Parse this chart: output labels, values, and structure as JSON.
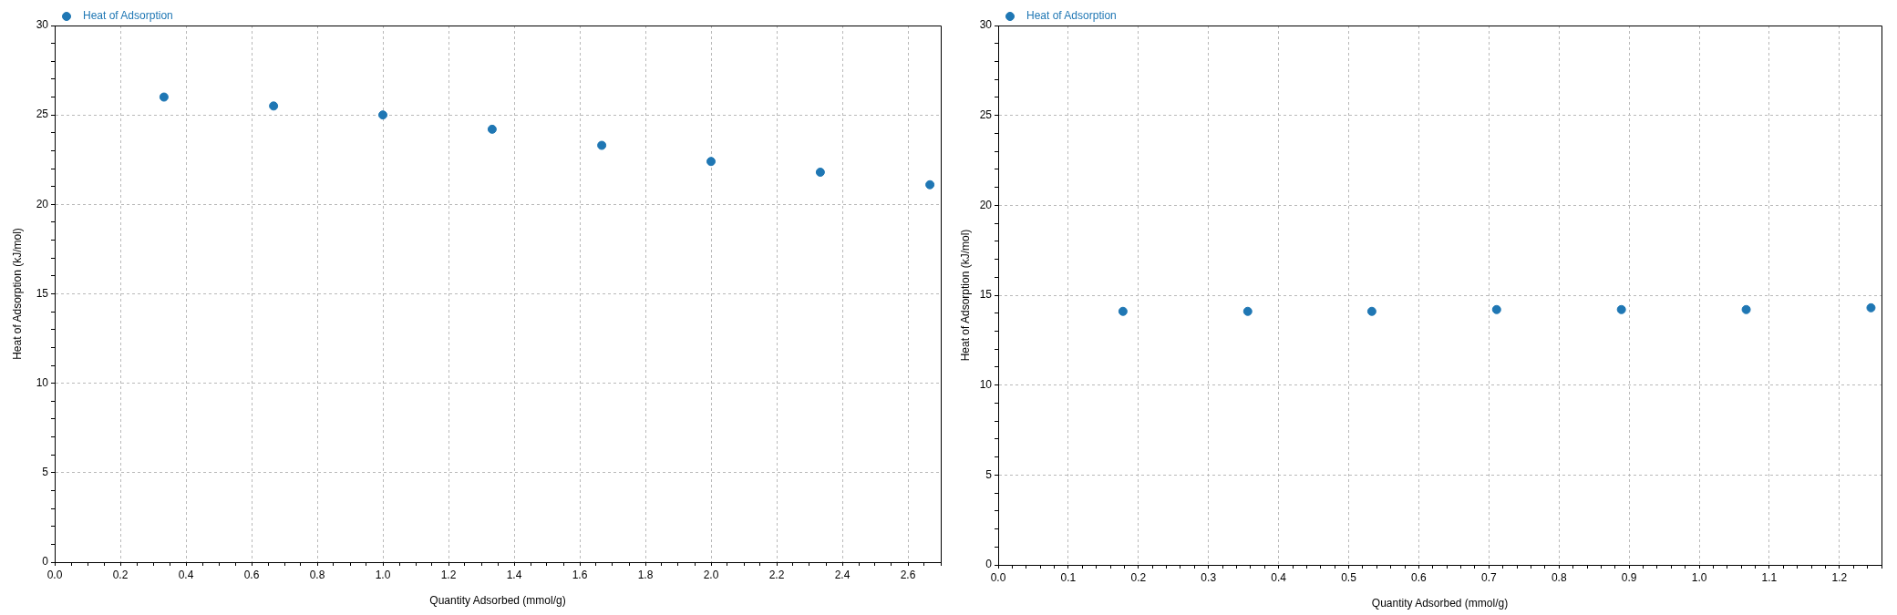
{
  "chart_data": [
    {
      "type": "scatter",
      "xlabel": "Quantity Adsorbed (mmol/g)",
      "ylabel": "Heat of Adsorption (kJ/mol)",
      "x": [
        0.333,
        0.667,
        1.0,
        1.333,
        1.667,
        2.0,
        2.333,
        2.667
      ],
      "series": [
        {
          "name": "Heat of Adsorption",
          "color": "#1f77b4",
          "values": [
            26.0,
            25.5,
            25.0,
            24.2,
            23.3,
            22.4,
            21.8,
            21.1
          ]
        }
      ],
      "xlim": [
        0,
        2.7
      ],
      "ylim": [
        0,
        30
      ],
      "xticks": [
        {
          "value": 0,
          "label": "0.0"
        },
        {
          "value": 0.05,
          "label": null
        },
        {
          "value": 0.1,
          "label": null
        },
        {
          "value": 0.15,
          "label": null
        },
        0.2,
        {
          "value": 0.25,
          "label": null
        },
        {
          "value": 0.3,
          "label": null
        },
        {
          "value": 0.35,
          "label": null
        },
        0.4,
        {
          "value": 0.45,
          "label": null
        },
        {
          "value": 0.5,
          "label": null
        },
        {
          "value": 0.55,
          "label": null
        },
        0.6,
        {
          "value": 0.65,
          "label": null
        },
        {
          "value": 0.7,
          "label": null
        },
        {
          "value": 0.75,
          "label": null
        },
        0.8,
        {
          "value": 0.85,
          "label": null
        },
        {
          "value": 0.9,
          "label": null
        },
        {
          "value": 0.95,
          "label": null
        },
        {
          "value": 1,
          "label": "1.0"
        },
        {
          "value": 1.05,
          "label": null
        },
        {
          "value": 1.1,
          "label": null
        },
        {
          "value": 1.15,
          "label": null
        },
        1.2,
        {
          "value": 1.25,
          "label": null
        },
        {
          "value": 1.3,
          "label": null
        },
        {
          "value": 1.35,
          "label": null
        },
        1.4,
        {
          "value": 1.45,
          "label": null
        },
        {
          "value": 1.5,
          "label": null
        },
        {
          "value": 1.55,
          "label": null
        },
        1.6,
        {
          "value": 1.65,
          "label": null
        },
        {
          "value": 1.7,
          "label": null
        },
        {
          "value": 1.75,
          "label": null
        },
        1.8,
        {
          "value": 1.85,
          "label": null
        },
        {
          "value": 1.9,
          "label": null
        },
        {
          "value": 1.95,
          "label": null
        },
        {
          "value": 2,
          "label": "2.0"
        },
        {
          "value": 2.05,
          "label": null
        },
        {
          "value": 2.1,
          "label": null
        },
        {
          "value": 2.15,
          "label": null
        },
        2.2,
        {
          "value": 2.25,
          "label": null
        },
        {
          "value": 2.3,
          "label": null
        },
        {
          "value": 2.35,
          "label": null
        },
        2.4,
        {
          "value": 2.45,
          "label": null
        },
        {
          "value": 2.5,
          "label": null
        },
        {
          "value": 2.55,
          "label": null
        },
        2.6,
        {
          "value": 2.65,
          "label": null
        },
        {
          "value": 2.7,
          "label": null
        }
      ],
      "yticks": [
        0,
        {
          "value": 1,
          "label": null
        },
        {
          "value": 2,
          "label": null
        },
        {
          "value": 3,
          "label": null
        },
        {
          "value": 4,
          "label": null
        },
        5,
        {
          "value": 6,
          "label": null
        },
        {
          "value": 7,
          "label": null
        },
        {
          "value": 8,
          "label": null
        },
        {
          "value": 9,
          "label": null
        },
        10,
        {
          "value": 11,
          "label": null
        },
        {
          "value": 12,
          "label": null
        },
        {
          "value": 13,
          "label": null
        },
        {
          "value": 14,
          "label": null
        },
        15,
        {
          "value": 16,
          "label": null
        },
        {
          "value": 17,
          "label": null
        },
        {
          "value": 18,
          "label": null
        },
        {
          "value": 19,
          "label": null
        },
        20,
        {
          "value": 21,
          "label": null
        },
        {
          "value": 22,
          "label": null
        },
        {
          "value": 23,
          "label": null
        },
        {
          "value": 24,
          "label": null
        },
        25,
        {
          "value": 26,
          "label": null
        },
        {
          "value": 27,
          "label": null
        },
        {
          "value": 28,
          "label": null
        },
        {
          "value": 29,
          "label": null
        },
        30
      ],
      "grid": true,
      "legend": "top left",
      "marker": "circle"
    },
    {
      "type": "scatter",
      "xlabel": "Quantity Adsorbed (mmol/g)",
      "ylabel": "Heat of Adsorption (kJ/mol)",
      "x": [
        0.178,
        0.356,
        0.533,
        0.711,
        0.889,
        1.067,
        1.245
      ],
      "series": [
        {
          "name": "Heat of Adsorption",
          "color": "#1f77b4",
          "values": [
            14.1,
            14.1,
            14.1,
            14.2,
            14.2,
            14.2,
            14.3
          ]
        }
      ],
      "xlim": [
        0,
        1.26
      ],
      "ylim": [
        0,
        30
      ],
      "xticks": [
        {
          "value": 0,
          "label": "0.0"
        },
        {
          "value": 0.02,
          "label": null
        },
        {
          "value": 0.04,
          "label": null
        },
        {
          "value": 0.06,
          "label": null
        },
        {
          "value": 0.08,
          "label": null
        },
        0.1,
        {
          "value": 0.12,
          "label": null
        },
        {
          "value": 0.14,
          "label": null
        },
        {
          "value": 0.16,
          "label": null
        },
        {
          "value": 0.18,
          "label": null
        },
        0.2,
        {
          "value": 0.22,
          "label": null
        },
        {
          "value": 0.24,
          "label": null
        },
        {
          "value": 0.26,
          "label": null
        },
        {
          "value": 0.28,
          "label": null
        },
        0.3,
        {
          "value": 0.32,
          "label": null
        },
        {
          "value": 0.34,
          "label": null
        },
        {
          "value": 0.36,
          "label": null
        },
        {
          "value": 0.38,
          "label": null
        },
        0.4,
        {
          "value": 0.42,
          "label": null
        },
        {
          "value": 0.44,
          "label": null
        },
        {
          "value": 0.46,
          "label": null
        },
        {
          "value": 0.48,
          "label": null
        },
        0.5,
        {
          "value": 0.52,
          "label": null
        },
        {
          "value": 0.54,
          "label": null
        },
        {
          "value": 0.56,
          "label": null
        },
        {
          "value": 0.58,
          "label": null
        },
        0.6,
        {
          "value": 0.62,
          "label": null
        },
        {
          "value": 0.64,
          "label": null
        },
        {
          "value": 0.66,
          "label": null
        },
        {
          "value": 0.68,
          "label": null
        },
        0.7,
        {
          "value": 0.72,
          "label": null
        },
        {
          "value": 0.74,
          "label": null
        },
        {
          "value": 0.76,
          "label": null
        },
        {
          "value": 0.78,
          "label": null
        },
        0.8,
        {
          "value": 0.82,
          "label": null
        },
        {
          "value": 0.84,
          "label": null
        },
        {
          "value": 0.86,
          "label": null
        },
        {
          "value": 0.88,
          "label": null
        },
        0.9,
        {
          "value": 0.92,
          "label": null
        },
        {
          "value": 0.94,
          "label": null
        },
        {
          "value": 0.96,
          "label": null
        },
        {
          "value": 0.98,
          "label": null
        },
        {
          "value": 1,
          "label": "1.0"
        },
        {
          "value": 1.02,
          "label": null
        },
        {
          "value": 1.04,
          "label": null
        },
        {
          "value": 1.06,
          "label": null
        },
        {
          "value": 1.08,
          "label": null
        },
        1.1,
        {
          "value": 1.12,
          "label": null
        },
        {
          "value": 1.14,
          "label": null
        },
        {
          "value": 1.16,
          "label": null
        },
        {
          "value": 1.18,
          "label": null
        },
        1.2,
        {
          "value": 1.22,
          "label": null
        },
        {
          "value": 1.24,
          "label": null
        },
        {
          "value": 1.26,
          "label": null
        }
      ],
      "yticks": [
        0,
        {
          "value": 1,
          "label": null
        },
        {
          "value": 2,
          "label": null
        },
        {
          "value": 3,
          "label": null
        },
        {
          "value": 4,
          "label": null
        },
        5,
        {
          "value": 6,
          "label": null
        },
        {
          "value": 7,
          "label": null
        },
        {
          "value": 8,
          "label": null
        },
        {
          "value": 9,
          "label": null
        },
        10,
        {
          "value": 11,
          "label": null
        },
        {
          "value": 12,
          "label": null
        },
        {
          "value": 13,
          "label": null
        },
        {
          "value": 14,
          "label": null
        },
        15,
        {
          "value": 16,
          "label": null
        },
        {
          "value": 17,
          "label": null
        },
        {
          "value": 18,
          "label": null
        },
        {
          "value": 19,
          "label": null
        },
        20,
        {
          "value": 21,
          "label": null
        },
        {
          "value": 22,
          "label": null
        },
        {
          "value": 23,
          "label": null
        },
        {
          "value": 24,
          "label": null
        },
        25,
        {
          "value": 26,
          "label": null
        },
        {
          "value": 27,
          "label": null
        },
        {
          "value": 28,
          "label": null
        },
        {
          "value": 29,
          "label": null
        },
        30
      ],
      "grid": true,
      "legend": "top left",
      "marker": "circle"
    }
  ]
}
